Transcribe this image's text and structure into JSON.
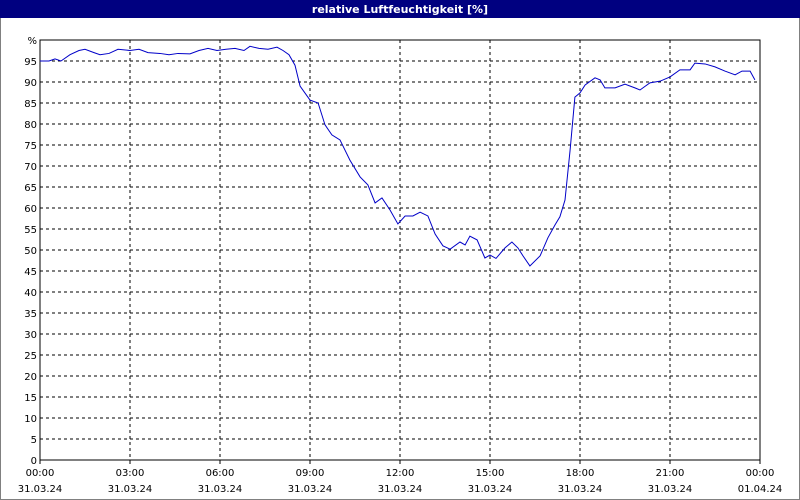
{
  "chart_data": {
    "type": "line",
    "title": "relative Luftfeuchtigkeit [%]",
    "x": [
      0,
      0.3,
      0.5,
      0.7,
      1.0,
      1.3,
      1.5,
      1.8,
      2.0,
      2.3,
      2.6,
      3.0,
      3.3,
      3.6,
      4.0,
      4.3,
      4.6,
      5.0,
      5.3,
      5.6,
      5.9,
      6.2,
      6.5,
      6.8,
      7.0,
      7.3,
      7.6,
      7.9,
      8.1,
      8.3,
      8.5,
      8.67,
      9,
      9.27,
      9.5,
      9.73,
      10,
      10.33,
      10.67,
      10.93,
      11.17,
      11.4,
      11.67,
      11.93,
      12.17,
      12.43,
      12.67,
      12.93,
      13.17,
      13.43,
      13.67,
      14,
      14.17,
      14.33,
      14.57,
      14.83,
      15,
      15.2,
      15.5,
      15.73,
      15.93,
      16.1,
      16.33,
      16.67,
      16.93,
      17.17,
      17.33,
      17.5,
      17.67,
      17.83,
      18,
      18.17,
      18.5,
      18.67,
      18.83,
      19.17,
      19.5,
      19.83,
      20,
      20.33,
      20.67,
      21,
      21.33,
      21.67,
      21.83,
      22.17,
      22.5,
      22.83,
      23.17,
      23.4,
      23.67,
      23.83
    ],
    "series": [
      {
        "name": "relative Luftfeuchtigkeit",
        "color": "#0000c8",
        "values": [
          95,
          95,
          95.5,
          95,
          96.5,
          97.5,
          97.8,
          97,
          96.5,
          96.8,
          97.8,
          97.5,
          97.8,
          97,
          96.8,
          96.5,
          96.8,
          96.7,
          97.5,
          98,
          97.5,
          97.8,
          98,
          97.5,
          98.5,
          98,
          97.8,
          98.3,
          97.5,
          96.5,
          94,
          89,
          85.7,
          85,
          79.8,
          77.4,
          76.2,
          71.4,
          67.4,
          65.5,
          61.2,
          62.4,
          59.5,
          56.2,
          58.1,
          58.1,
          59,
          58.1,
          53.8,
          51,
          50.2,
          51.9,
          51.2,
          53.3,
          52.4,
          48.1,
          48.8,
          48,
          50.5,
          51.9,
          50.5,
          48.6,
          46.2,
          48.6,
          52.9,
          56,
          57.9,
          61.9,
          73.8,
          86.4,
          87.4,
          89.3,
          91,
          90.5,
          88.6,
          88.6,
          89.5,
          88.6,
          88.1,
          89.8,
          90.2,
          91.2,
          92.9,
          92.9,
          94.5,
          94.3,
          93.6,
          92.6,
          91.7,
          92.6,
          92.6,
          90.5
        ]
      }
    ],
    "xlim": [
      0,
      24
    ],
    "xticks": [
      {
        "value": 0,
        "label": "00:00\n31.03.24"
      },
      {
        "value": 3,
        "label": "03:00\n31.03.24"
      },
      {
        "value": 6,
        "label": "06:00\n31.03.24"
      },
      {
        "value": 9,
        "label": "09:00\n31.03.24"
      },
      {
        "value": 12,
        "label": "12:00\n31.03.24"
      },
      {
        "value": 15,
        "label": "15:00\n31.03.24"
      },
      {
        "value": 18,
        "label": "18:00\n31.03.24"
      },
      {
        "value": 21,
        "label": "21:00\n31.03.24"
      },
      {
        "value": 24,
        "label": "00:00\n01.04.24"
      }
    ],
    "ylim": [
      0,
      100
    ],
    "yticks": [
      0,
      5,
      10,
      15,
      20,
      25,
      30,
      35,
      40,
      45,
      50,
      55,
      60,
      65,
      70,
      75,
      80,
      85,
      90,
      95,
      {
        "value": 100,
        "label": "%"
      }
    ],
    "grid": true
  }
}
